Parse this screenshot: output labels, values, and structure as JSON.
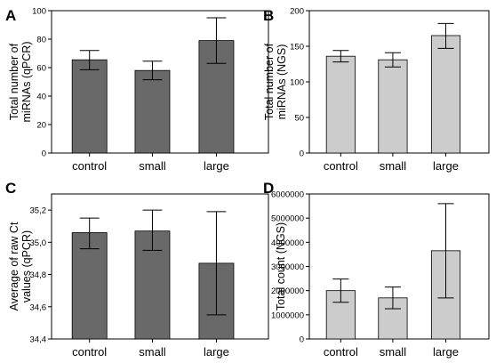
{
  "chart_data": [
    {
      "panel": "A",
      "type": "bar",
      "categories": [
        "control",
        "small",
        "large"
      ],
      "values": [
        65.5,
        58,
        79
      ],
      "error_low": [
        58.5,
        51.5,
        63
      ],
      "error_high": [
        72,
        64.5,
        95
      ],
      "ylabel_lines": [
        "Total number of",
        "miRNAs (qPCR)"
      ],
      "ylim": [
        0,
        100
      ],
      "yticks": [
        0,
        20,
        40,
        60,
        80,
        100
      ],
      "ytick_labels": [
        "0",
        "20",
        "40",
        "60",
        "80",
        "100"
      ],
      "bar_color": "#696969",
      "grid": false
    },
    {
      "panel": "B",
      "type": "bar",
      "categories": [
        "control",
        "small",
        "large"
      ],
      "values": [
        136,
        131,
        165
      ],
      "error_low": [
        128,
        121,
        147
      ],
      "error_high": [
        144,
        141,
        182
      ],
      "ylabel_lines": [
        "Total number of",
        "miRNAs (NGS)"
      ],
      "ylim": [
        0,
        200
      ],
      "yticks": [
        0,
        50,
        100,
        150,
        200
      ],
      "ytick_labels": [
        "0",
        "50",
        "100",
        "150",
        "200"
      ],
      "bar_color": "#cccccc",
      "grid": false
    },
    {
      "panel": "C",
      "type": "bar",
      "categories": [
        "control",
        "small",
        "large"
      ],
      "values": [
        35.06,
        35.07,
        34.87
      ],
      "error_low": [
        34.96,
        34.95,
        34.55
      ],
      "error_high": [
        35.15,
        35.2,
        35.19
      ],
      "ylabel_lines": [
        "Average of raw Ct",
        "values (qPCR)"
      ],
      "ylim": [
        34.4,
        35.3
      ],
      "yticks": [
        34.4,
        34.6,
        34.8,
        35.0,
        35.2
      ],
      "ytick_labels": [
        "34,4",
        "34,6",
        "34,8",
        "35,0",
        "35,2"
      ],
      "bar_color": "#696969",
      "grid": false
    },
    {
      "panel": "D",
      "type": "bar",
      "categories": [
        "control",
        "small",
        "large"
      ],
      "values": [
        2000000,
        1700000,
        3650000
      ],
      "error_low": [
        1520000,
        1250000,
        1700000
      ],
      "error_high": [
        2480000,
        2150000,
        5600000
      ],
      "ylabel_lines": [
        "Total count (NGS)"
      ],
      "ylim": [
        0,
        6000000
      ],
      "yticks": [
        0,
        1000000,
        2000000,
        3000000,
        4000000,
        5000000,
        6000000
      ],
      "ytick_labels": [
        "0",
        "1000000",
        "2000000",
        "3000000",
        "4000000",
        "5000000",
        "6000000"
      ],
      "bar_color": "#cccccc",
      "grid": false
    }
  ]
}
